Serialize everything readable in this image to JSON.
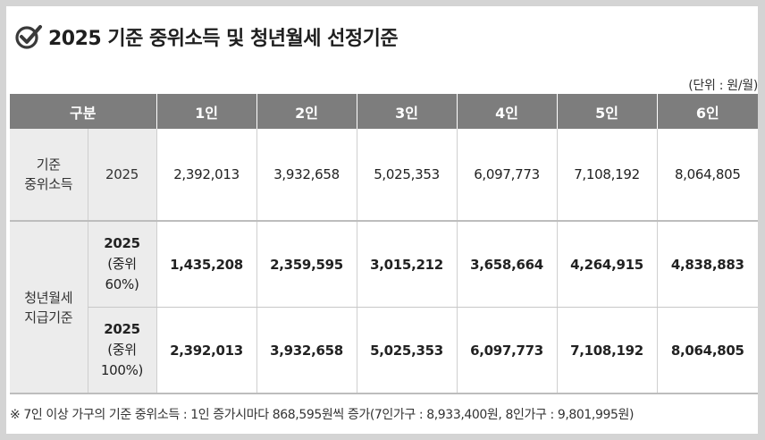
{
  "title": "2025 기준 중위소득 및 청년월세 선정기준",
  "unit": "(단위 : 원/월)",
  "table": {
    "headers": [
      "구분",
      "1인",
      "2인",
      "3인",
      "4인",
      "5인",
      "6인"
    ],
    "rows": [
      {
        "category_line1": "기준",
        "category_line2": "중위소득",
        "sub_line1": "2025",
        "values": [
          "2,392,013",
          "3,932,658",
          "5,025,353",
          "6,097,773",
          "7,108,192",
          "8,064,805"
        ]
      },
      {
        "category_line1": "청년월세",
        "category_line2": "지급기준",
        "sub_line1": "2025",
        "sub_line2": "(중위",
        "sub_line3": "60%)",
        "values": [
          "1,435,208",
          "2,359,595",
          "3,015,212",
          "3,658,664",
          "4,264,915",
          "4,838,883"
        ]
      },
      {
        "sub_line1": "2025",
        "sub_line2": "(중위",
        "sub_line3": "100%)",
        "values": [
          "2,392,013",
          "3,932,658",
          "5,025,353",
          "6,097,773",
          "7,108,192",
          "8,064,805"
        ]
      }
    ]
  },
  "footnote": "※ 7인 이상 가구의 기준 중위소득 : 1인 증가시마다 868,595원씩 증가(7인가구 : 8,933,400원, 8인가구 : 9,801,995원)"
}
